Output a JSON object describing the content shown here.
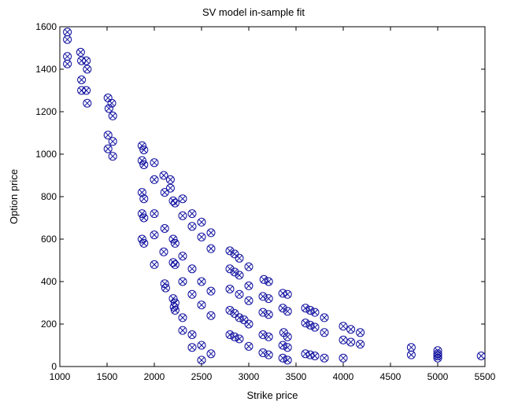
{
  "chart_data": {
    "type": "scatter",
    "title": "SV model in-sample fit",
    "xlabel": "Strike price",
    "ylabel": "Option price",
    "xlim": [
      1000,
      5500
    ],
    "ylim": [
      0,
      1600
    ],
    "xticks": [
      "1000",
      "1500",
      "2000",
      "2500",
      "3000",
      "3500",
      "4000",
      "4500",
      "5000",
      "5500"
    ],
    "yticks": [
      "0",
      "200",
      "400",
      "600",
      "800",
      "1000",
      "1200",
      "1400",
      "1600"
    ],
    "grid": false,
    "marker": "circle-x",
    "marker_color": "#1010a0",
    "series": [
      {
        "points": [
          [
            1080,
            1575
          ],
          [
            1080,
            1540
          ],
          [
            1080,
            1460
          ],
          [
            1080,
            1425
          ],
          [
            1220,
            1480
          ],
          [
            1230,
            1440
          ],
          [
            1280,
            1440
          ],
          [
            1290,
            1400
          ],
          [
            1230,
            1350
          ],
          [
            1230,
            1300
          ],
          [
            1280,
            1300
          ],
          [
            1290,
            1240
          ],
          [
            1510,
            1265
          ],
          [
            1520,
            1215
          ],
          [
            1550,
            1240
          ],
          [
            1560,
            1180
          ],
          [
            1510,
            1090
          ],
          [
            1510,
            1025
          ],
          [
            1560,
            1060
          ],
          [
            1560,
            990
          ],
          [
            1870,
            1040
          ],
          [
            1890,
            1020
          ],
          [
            1870,
            970
          ],
          [
            1890,
            950
          ],
          [
            2000,
            960
          ],
          [
            2100,
            900
          ],
          [
            2000,
            880
          ],
          [
            2170,
            880
          ],
          [
            2110,
            820
          ],
          [
            2170,
            840
          ],
          [
            2200,
            780
          ],
          [
            2220,
            770
          ],
          [
            2300,
            790
          ],
          [
            1870,
            820
          ],
          [
            1890,
            790
          ],
          [
            1870,
            720
          ],
          [
            1890,
            700
          ],
          [
            2000,
            720
          ],
          [
            2110,
            650
          ],
          [
            2200,
            600
          ],
          [
            2220,
            580
          ],
          [
            2300,
            710
          ],
          [
            2400,
            720
          ],
          [
            2400,
            660
          ],
          [
            2500,
            680
          ],
          [
            2500,
            610
          ],
          [
            2600,
            630
          ],
          [
            2600,
            555
          ],
          [
            1870,
            600
          ],
          [
            1890,
            580
          ],
          [
            2000,
            620
          ],
          [
            2100,
            540
          ],
          [
            2200,
            490
          ],
          [
            2220,
            480
          ],
          [
            2300,
            520
          ],
          [
            2400,
            460
          ],
          [
            2500,
            400
          ],
          [
            2600,
            355
          ],
          [
            2000,
            480
          ],
          [
            2110,
            390
          ],
          [
            2120,
            370
          ],
          [
            2200,
            320
          ],
          [
            2220,
            300
          ],
          [
            2210,
            280
          ],
          [
            2220,
            265
          ],
          [
            2300,
            400
          ],
          [
            2400,
            340
          ],
          [
            2500,
            290
          ],
          [
            2600,
            240
          ],
          [
            2300,
            230
          ],
          [
            2300,
            170
          ],
          [
            2400,
            150
          ],
          [
            2400,
            90
          ],
          [
            2500,
            100
          ],
          [
            2500,
            30
          ],
          [
            2600,
            60
          ],
          [
            2800,
            545
          ],
          [
            2850,
            530
          ],
          [
            2900,
            510
          ],
          [
            3000,
            470
          ],
          [
            2800,
            460
          ],
          [
            2850,
            445
          ],
          [
            2900,
            430
          ],
          [
            3000,
            380
          ],
          [
            2800,
            365
          ],
          [
            2900,
            340
          ],
          [
            3000,
            310
          ],
          [
            2800,
            265
          ],
          [
            2850,
            250
          ],
          [
            2900,
            230
          ],
          [
            2950,
            220
          ],
          [
            3000,
            200
          ],
          [
            2800,
            150
          ],
          [
            2850,
            140
          ],
          [
            2900,
            130
          ],
          [
            3000,
            95
          ],
          [
            3160,
            410
          ],
          [
            3210,
            400
          ],
          [
            3150,
            330
          ],
          [
            3210,
            320
          ],
          [
            3150,
            255
          ],
          [
            3210,
            245
          ],
          [
            3150,
            150
          ],
          [
            3210,
            140
          ],
          [
            3150,
            65
          ],
          [
            3210,
            55
          ],
          [
            3360,
            345
          ],
          [
            3410,
            340
          ],
          [
            3360,
            275
          ],
          [
            3410,
            260
          ],
          [
            3370,
            160
          ],
          [
            3410,
            140
          ],
          [
            3360,
            100
          ],
          [
            3410,
            90
          ],
          [
            3360,
            40
          ],
          [
            3410,
            30
          ],
          [
            3600,
            275
          ],
          [
            3650,
            265
          ],
          [
            3700,
            255
          ],
          [
            3800,
            230
          ],
          [
            3600,
            205
          ],
          [
            3650,
            195
          ],
          [
            3700,
            185
          ],
          [
            3800,
            160
          ],
          [
            3600,
            60
          ],
          [
            3650,
            55
          ],
          [
            3700,
            50
          ],
          [
            3800,
            40
          ],
          [
            4000,
            190
          ],
          [
            4080,
            175
          ],
          [
            4180,
            160
          ],
          [
            4000,
            125
          ],
          [
            4080,
            115
          ],
          [
            4180,
            105
          ],
          [
            4000,
            40
          ],
          [
            4720,
            90
          ],
          [
            4720,
            55
          ],
          [
            5000,
            75
          ],
          [
            5000,
            60
          ],
          [
            5000,
            50
          ],
          [
            5000,
            40
          ],
          [
            5460,
            50
          ]
        ]
      }
    ]
  }
}
